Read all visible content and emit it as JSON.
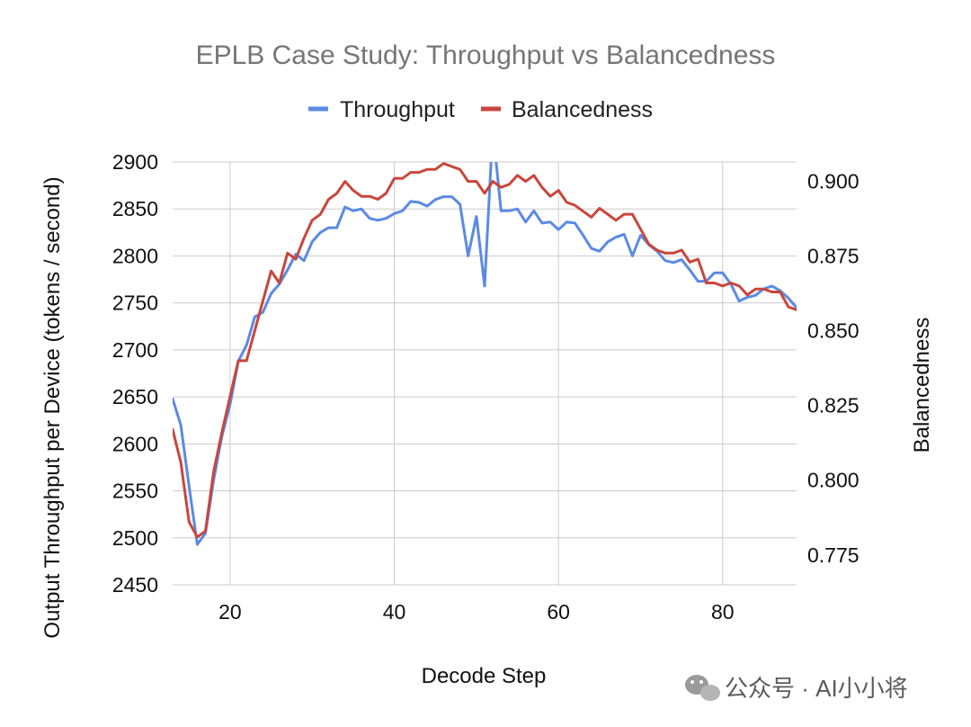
{
  "watermark": {
    "text": "公众号 · AI小小将"
  },
  "chart_data": {
    "type": "line",
    "title": "EPLB Case Study: Throughput vs Balancedness",
    "xlabel": "Decode Step",
    "ylabel": "Output Throughput per Device (tokens / second)",
    "y2label": "Balancedness",
    "xlim": [
      13,
      89
    ],
    "ylim": [
      2450,
      2900
    ],
    "y2lim": [
      0.765,
      0.9065
    ],
    "x_ticks": [
      20,
      40,
      60,
      80
    ],
    "y_ticks": [
      2450,
      2500,
      2550,
      2600,
      2650,
      2700,
      2750,
      2800,
      2850,
      2900
    ],
    "y2_ticks": [
      0.775,
      0.8,
      0.825,
      0.85,
      0.875,
      0.9
    ],
    "y2_tick_labels": [
      "0.775",
      "0.800",
      "0.825",
      "0.850",
      "0.875",
      "0.900"
    ],
    "grid": true,
    "legend_position": "top",
    "series": [
      {
        "name": "Throughput",
        "axis": "left",
        "color": "#5b8ae5",
        "x": [
          13,
          14,
          15,
          16,
          17,
          18,
          19,
          20,
          21,
          22,
          23,
          24,
          25,
          26,
          27,
          28,
          29,
          30,
          31,
          32,
          33,
          34,
          35,
          36,
          37,
          38,
          39,
          40,
          41,
          42,
          43,
          44,
          45,
          46,
          47,
          48,
          49,
          50,
          51,
          52,
          53,
          54,
          55,
          56,
          57,
          58,
          59,
          60,
          61,
          62,
          63,
          64,
          65,
          66,
          67,
          68,
          69,
          70,
          71,
          72,
          73,
          74,
          75,
          76,
          77,
          78,
          79,
          80,
          81,
          82,
          83,
          84,
          85,
          86,
          87,
          88,
          89
        ],
        "values": [
          2648,
          2620,
          2555,
          2493,
          2505,
          2562,
          2608,
          2642,
          2688,
          2705,
          2735,
          2740,
          2760,
          2770,
          2785,
          2802,
          2795,
          2815,
          2825,
          2830,
          2830,
          2852,
          2848,
          2850,
          2840,
          2838,
          2840,
          2845,
          2848,
          2858,
          2857,
          2853,
          2860,
          2863,
          2863,
          2855,
          2800,
          2842,
          2768,
          2935,
          2848,
          2848,
          2850,
          2836,
          2848,
          2835,
          2836,
          2828,
          2836,
          2835,
          2822,
          2808,
          2805,
          2815,
          2820,
          2823,
          2800,
          2822,
          2812,
          2805,
          2795,
          2793,
          2796,
          2785,
          2773,
          2773,
          2782,
          2782,
          2770,
          2752,
          2756,
          2758,
          2765,
          2768,
          2763,
          2755,
          2745
        ]
      },
      {
        "name": "Balancedness",
        "axis": "right",
        "color": "#c9463d",
        "x": [
          13,
          14,
          15,
          16,
          17,
          18,
          19,
          20,
          21,
          22,
          23,
          24,
          25,
          26,
          27,
          28,
          29,
          30,
          31,
          32,
          33,
          34,
          35,
          36,
          37,
          38,
          39,
          40,
          41,
          42,
          43,
          44,
          45,
          46,
          47,
          48,
          49,
          50,
          51,
          52,
          53,
          54,
          55,
          56,
          57,
          58,
          59,
          60,
          61,
          62,
          63,
          64,
          65,
          66,
          67,
          68,
          69,
          70,
          71,
          72,
          73,
          74,
          75,
          76,
          77,
          78,
          79,
          80,
          81,
          82,
          83,
          84,
          85,
          86,
          87,
          88,
          89
        ],
        "values": [
          0.817,
          0.806,
          0.786,
          0.781,
          0.783,
          0.803,
          0.816,
          0.828,
          0.84,
          0.84,
          0.85,
          0.86,
          0.87,
          0.866,
          0.876,
          0.874,
          0.881,
          0.887,
          0.889,
          0.894,
          0.896,
          0.9,
          0.897,
          0.895,
          0.895,
          0.894,
          0.896,
          0.901,
          0.901,
          0.903,
          0.903,
          0.904,
          0.904,
          0.906,
          0.905,
          0.904,
          0.9,
          0.9,
          0.896,
          0.9,
          0.898,
          0.899,
          0.902,
          0.9,
          0.902,
          0.898,
          0.895,
          0.897,
          0.893,
          0.892,
          0.89,
          0.888,
          0.891,
          0.889,
          0.887,
          0.889,
          0.889,
          0.884,
          0.879,
          0.877,
          0.876,
          0.876,
          0.877,
          0.873,
          0.874,
          0.866,
          0.866,
          0.865,
          0.866,
          0.865,
          0.862,
          0.864,
          0.864,
          0.863,
          0.863,
          0.858,
          0.857
        ]
      }
    ]
  }
}
